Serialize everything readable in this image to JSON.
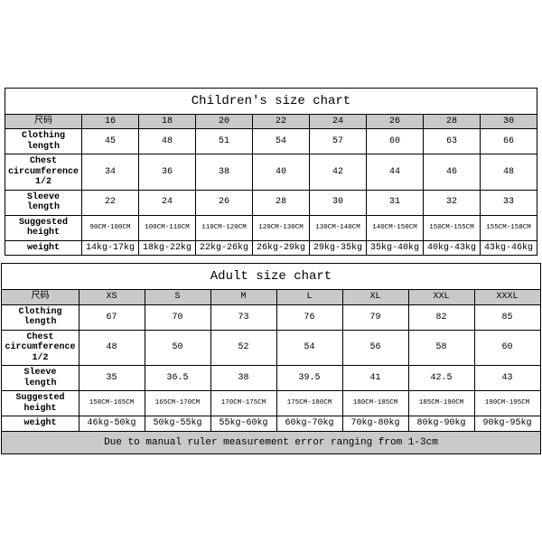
{
  "children": {
    "title": "Children's size chart",
    "row_label_header": "尺码",
    "sizes": [
      "16",
      "18",
      "20",
      "22",
      "24",
      "26",
      "28",
      "30"
    ],
    "rows": [
      {
        "label": "Clothing length",
        "values": [
          "45",
          "48",
          "51",
          "54",
          "57",
          "60",
          "63",
          "66"
        ],
        "small": false
      },
      {
        "label": "Chest circumference 1/2",
        "values": [
          "34",
          "36",
          "38",
          "40",
          "42",
          "44",
          "46",
          "48"
        ],
        "small": false
      },
      {
        "label": "Sleeve length",
        "values": [
          "22",
          "24",
          "26",
          "28",
          "30",
          "31",
          "32",
          "33"
        ],
        "small": false
      },
      {
        "label": "Suggested height",
        "values": [
          "90CM-100CM",
          "100CM-110CM",
          "110CM-120CM",
          "120CM-130CM",
          "130CM-140CM",
          "140CM-150CM",
          "150CM-155CM",
          "155CM-158CM"
        ],
        "small": true
      },
      {
        "label": "weight",
        "values": [
          "14kg-17kg",
          "18kg-22kg",
          "22kg-26kg",
          "26kg-29kg",
          "29kg-35kg",
          "35kg-40kg",
          "40kg-43kg",
          "43kg-46kg"
        ],
        "small": false
      }
    ]
  },
  "adult": {
    "title": "Adult size chart",
    "row_label_header": "尺码",
    "sizes": [
      "XS",
      "S",
      "M",
      "L",
      "XL",
      "XXL",
      "XXXL"
    ],
    "rows": [
      {
        "label": "Clothing length",
        "values": [
          "67",
          "70",
          "73",
          "76",
          "79",
          "82",
          "85"
        ],
        "small": false
      },
      {
        "label": "Chest circumference 1/2",
        "values": [
          "48",
          "50",
          "52",
          "54",
          "56",
          "58",
          "60"
        ],
        "small": false
      },
      {
        "label": "Sleeve length",
        "values": [
          "35",
          "36.5",
          "38",
          "39.5",
          "41",
          "42.5",
          "43"
        ],
        "small": false
      },
      {
        "label": "Suggested height",
        "values": [
          "158CM-165CM",
          "165CM-170CM",
          "170CM-175CM",
          "175CM-180CM",
          "180CM-185CM",
          "185CM-190CM",
          "190CM-195CM"
        ],
        "small": true
      },
      {
        "label": "weight",
        "values": [
          "46kg-50kg",
          "50kg-55kg",
          "55kg-60kg",
          "60kg-70kg",
          "70kg-80kg",
          "80kg-90kg",
          "90kg-95kg"
        ],
        "small": false
      }
    ],
    "note": "Due to manual ruler measurement error ranging from 1-3cm"
  },
  "style": {
    "header_bg": "#c9c9c9",
    "border_color": "#000000",
    "background": "#ffffff",
    "title_fontsize": 14,
    "cell_fontsize": 10,
    "small_fontsize": 7.5,
    "font_family": "Courier New"
  }
}
